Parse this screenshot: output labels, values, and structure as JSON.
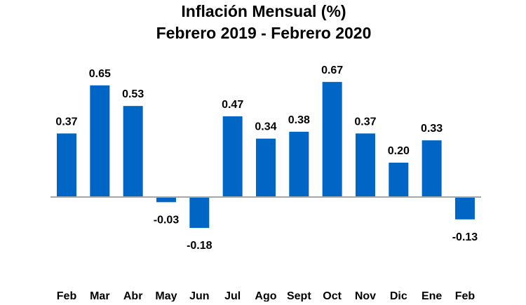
{
  "chart_data": {
    "type": "bar",
    "title": "Inflación Mensual (%)",
    "subtitle": "Febrero 2019 - Febrero 2020",
    "xlabel": "",
    "ylabel": "",
    "categories": [
      "Feb",
      "Mar",
      "Abr",
      "May",
      "Jun",
      "Jul",
      "Ago",
      "Sept",
      "Oct",
      "Nov",
      "Dic",
      "Ene",
      "Feb"
    ],
    "values": [
      0.37,
      0.65,
      0.53,
      -0.03,
      -0.18,
      0.47,
      0.34,
      0.38,
      0.67,
      0.37,
      0.2,
      0.33,
      -0.13
    ],
    "data_labels": [
      "0.37",
      "0.65",
      "0.53",
      "-0.03",
      "-0.18",
      "0.47",
      "0.34",
      "0.38",
      "0.67",
      "0.37",
      "0.20",
      "0.33",
      "-0.13"
    ],
    "ylim": [
      -0.2,
      0.7
    ],
    "grid": false,
    "legend": "none",
    "colors": {
      "bar": "#0066C6",
      "axis": "#A6A6A6"
    }
  }
}
